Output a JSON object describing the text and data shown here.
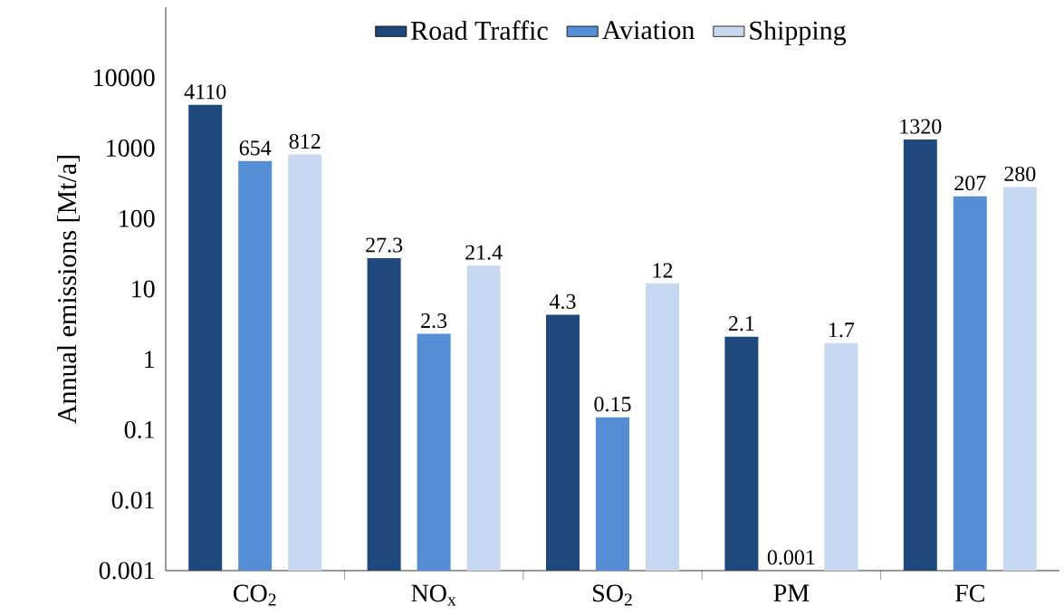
{
  "chart_data": {
    "type": "bar",
    "ylabel": "Annual emissions [Mt/a]",
    "categories": [
      "CO$_{2}$",
      "NO$_{x}$",
      "SO$_{2}$",
      "PM",
      "FC"
    ],
    "series": [
      {
        "name": "Road Traffic",
        "color": "#1f487c",
        "values": [
          4110,
          27.3,
          4.3,
          2.1,
          1320
        ]
      },
      {
        "name": "Aviation",
        "color": "#558ed5",
        "values": [
          654,
          2.3,
          0.15,
          0.001,
          207
        ]
      },
      {
        "name": "Shipping",
        "color": "#c6d9f1",
        "values": [
          812,
          21.4,
          12,
          1.7,
          280
        ]
      }
    ],
    "log": "y",
    "ylim": [
      0.001,
      100000
    ],
    "yticks": [
      0.001,
      0.01,
      0.1,
      1,
      10,
      100,
      1000,
      10000
    ],
    "data_labels": true,
    "legend": "top",
    "grid": false
  }
}
